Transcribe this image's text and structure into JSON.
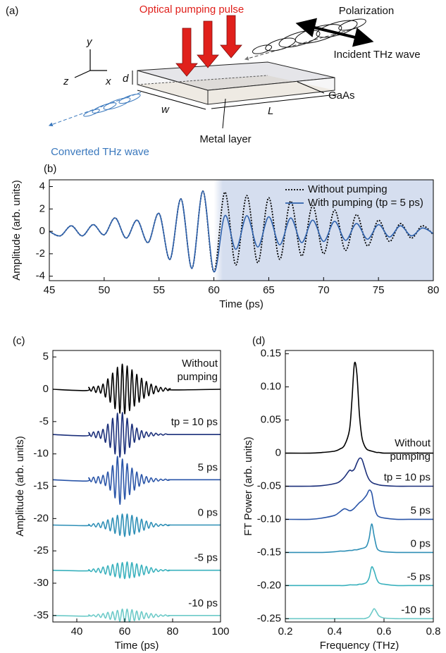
{
  "diagram": {
    "panel_label": "(a)",
    "pump_label": "Optical pumping pulse",
    "polarization_label": "Polarization",
    "incident_label": "Incident THz wave",
    "gaas_label": "GaAs",
    "metal_label": "Metal layer",
    "converted_label": "Converted THz wave",
    "axis_labels": [
      "y",
      "z",
      "x"
    ],
    "dimension_labels": [
      "d",
      "w",
      "L"
    ]
  },
  "chart_data": [
    {
      "type": "line",
      "panel_label": "(b)",
      "x_label": "Time (ps)",
      "y_label": "Amplitude (arb. units)",
      "x": [
        45,
        46,
        47,
        48,
        49,
        50,
        51,
        52,
        53,
        54,
        55,
        56,
        57,
        58,
        59,
        60,
        61,
        62,
        63,
        64,
        65,
        66,
        67,
        68,
        69,
        70,
        71,
        72,
        73,
        74,
        75,
        76,
        77,
        78,
        79,
        80
      ],
      "series": [
        {
          "name": "Without pumping",
          "color": "#000000",
          "line_style": "dotted",
          "values": [
            0,
            -0.4,
            0.5,
            -0.4,
            0.6,
            -0.3,
            1.2,
            -0.6,
            1.0,
            -1.0,
            1.6,
            -2.5,
            2.9,
            -3.3,
            3.6,
            -3.6,
            3.5,
            -3.0,
            3.2,
            -2.8,
            3.0,
            -2.5,
            2.7,
            -2.2,
            2.3,
            -2.0,
            1.9,
            -1.7,
            1.5,
            -1.3,
            1.0,
            -0.9,
            0.7,
            -0.6,
            0.5,
            -0.3
          ]
        },
        {
          "name": "With pumping (tp = 5 ps)",
          "color": "#2f62ad",
          "line_style": "solid",
          "values": [
            0,
            -0.4,
            0.5,
            -0.4,
            0.6,
            -0.3,
            1.2,
            -0.6,
            1.0,
            -1.0,
            1.6,
            -2.5,
            2.9,
            -3.3,
            3.6,
            -3.6,
            1.4,
            -1.6,
            1.4,
            -1.4,
            1.3,
            -1.2,
            1.2,
            -1.0,
            1.0,
            -0.9,
            0.9,
            -0.8,
            0.7,
            -0.7,
            0.6,
            -0.5,
            0.5,
            -0.4,
            0.3,
            -0.2
          ]
        }
      ],
      "xlim": [
        45,
        80
      ],
      "ylim": [
        -4.4,
        4.6
      ],
      "xticks": [
        45,
        50,
        55,
        60,
        65,
        70,
        75,
        80
      ],
      "yticks": [
        -4,
        -2,
        0,
        2,
        4
      ],
      "shaded_xrange": [
        60,
        80
      ],
      "shade_color": "#d5deef",
      "legend": "upper right"
    },
    {
      "type": "line",
      "panel_label": "(c)",
      "x_label": "Time (ps)",
      "y_label": "Amplitude (arb. units)",
      "x": [
        30,
        44,
        45,
        46,
        47,
        48,
        49,
        50,
        51,
        52,
        53,
        54,
        55,
        56,
        57,
        58,
        59,
        60,
        61,
        62,
        63,
        64,
        65,
        66,
        67,
        68,
        69,
        70,
        71,
        72,
        73,
        74,
        75,
        76,
        77,
        78,
        79,
        80,
        100
      ],
      "series": [
        {
          "name": "Without pumping",
          "color": "#000000",
          "line_style": "solid",
          "values": [
            0,
            -0.2,
            0.3,
            -0.3,
            0.4,
            -0.5,
            0.5,
            -0.6,
            0.8,
            -1.2,
            1.6,
            -2.0,
            2.5,
            -3.0,
            3.4,
            -3.7,
            3.9,
            -3.8,
            3.6,
            -3.3,
            3.0,
            -2.6,
            2.3,
            -2.0,
            1.7,
            -1.4,
            1.2,
            -1.0,
            0.8,
            -0.7,
            0.5,
            -0.4,
            0.3,
            -0.3,
            0.2,
            -0.2,
            0.1,
            -0.1,
            0
          ]
        },
        {
          "name": "tp = 10 ps",
          "color": "#1b2f7a",
          "line_style": "solid",
          "values": [
            -7,
            -7.2,
            -6.7,
            -7.3,
            -6.6,
            -7.5,
            -6.5,
            -7.6,
            -6.2,
            -8.2,
            -5.4,
            -9.0,
            -4.5,
            -10.0,
            -3.7,
            -10.5,
            -3.6,
            -10.0,
            -4.5,
            -9.0,
            -5.4,
            -8.2,
            -6.0,
            -7.8,
            -6.4,
            -7.5,
            -6.6,
            -7.3,
            -6.7,
            -7.2,
            -6.8,
            -7.1,
            -6.9,
            -7.1,
            -6.9,
            -7,
            -7,
            -7,
            -7
          ]
        },
        {
          "name": "5 ps",
          "color": "#2a55a8",
          "line_style": "solid",
          "values": [
            -14,
            -14.2,
            -13.7,
            -14.3,
            -13.6,
            -14.5,
            -13.5,
            -14.6,
            -13.3,
            -14.9,
            -12.8,
            -15.6,
            -11.8,
            -16.8,
            -10.4,
            -17.8,
            -10.8,
            -17.0,
            -11.5,
            -16.3,
            -12.2,
            -15.6,
            -12.8,
            -15.0,
            -13.2,
            -14.6,
            -13.5,
            -14.4,
            -13.7,
            -14.3,
            -13.8,
            -14.2,
            -13.9,
            -14.1,
            -13.9,
            -14.1,
            -14,
            -14,
            -14
          ]
        },
        {
          "name": "0 ps",
          "color": "#2e8fb6",
          "line_style": "solid",
          "values": [
            -21,
            -21.1,
            -20.9,
            -21.2,
            -20.8,
            -21.3,
            -20.7,
            -21.4,
            -20.5,
            -21.6,
            -20.2,
            -21.9,
            -19.9,
            -22.3,
            -19.5,
            -22.6,
            -19.3,
            -22.8,
            -19.3,
            -22.6,
            -19.5,
            -22.4,
            -19.8,
            -22.1,
            -20.1,
            -21.8,
            -20.4,
            -21.5,
            -20.6,
            -21.3,
            -20.8,
            -21.2,
            -20.9,
            -21.1,
            -20.9,
            -21.1,
            -21,
            -21,
            -21
          ]
        },
        {
          "name": "-5 ps",
          "color": "#39b1bd",
          "line_style": "solid",
          "values": [
            -28,
            -28.1,
            -27.9,
            -28.2,
            -27.8,
            -28.3,
            -27.7,
            -28.4,
            -27.5,
            -28.6,
            -27.3,
            -28.8,
            -27.1,
            -29.0,
            -26.9,
            -29.2,
            -26.8,
            -29.3,
            -26.7,
            -29.2,
            -26.8,
            -29.1,
            -27.0,
            -28.9,
            -27.2,
            -28.7,
            -27.4,
            -28.5,
            -27.6,
            -28.3,
            -27.8,
            -28.2,
            -27.9,
            -28.1,
            -27.9,
            -28.1,
            -28,
            -28,
            -28
          ]
        },
        {
          "name": "-10 ps",
          "color": "#6ccac8",
          "line_style": "solid",
          "values": [
            -35,
            -35.1,
            -34.9,
            -35.1,
            -34.9,
            -35.2,
            -34.8,
            -35.3,
            -34.7,
            -35.4,
            -34.5,
            -35.6,
            -34.4,
            -35.7,
            -34.2,
            -35.9,
            -34.0,
            -36.0,
            -34.0,
            -36.0,
            -34.1,
            -35.8,
            -34.3,
            -35.7,
            -34.4,
            -35.5,
            -34.6,
            -35.4,
            -34.7,
            -35.3,
            -34.8,
            -35.2,
            -34.9,
            -35.1,
            -34.9,
            -35.1,
            -35,
            -35,
            -35
          ]
        }
      ],
      "xlim": [
        30,
        100
      ],
      "ylim": [
        -36,
        6
      ],
      "xticks": [
        40,
        60,
        80,
        100
      ],
      "yticks": [
        5,
        0,
        -5,
        -10,
        -15,
        -20,
        -25,
        -30,
        -35
      ],
      "series_labels": "inline"
    },
    {
      "type": "line",
      "panel_label": "(d)",
      "x_label": "Frequency (THz)",
      "y_label": "FT Power (arb. units)",
      "x": [
        0.2,
        0.3,
        0.35,
        0.4,
        0.42,
        0.44,
        0.46,
        0.47,
        0.48,
        0.49,
        0.5,
        0.51,
        0.52,
        0.53,
        0.54,
        0.55,
        0.56,
        0.57,
        0.58,
        0.6,
        0.65,
        0.7,
        0.8
      ],
      "series": [
        {
          "name": "Without pumping",
          "color": "#000000",
          "line_style": "solid",
          "values": [
            0,
            0,
            0.001,
            0.003,
            0.006,
            0.012,
            0.035,
            0.08,
            0.135,
            0.12,
            0.06,
            0.025,
            0.012,
            0.006,
            0.004,
            0.003,
            0.002,
            0.001,
            0.001,
            0,
            0,
            0,
            0
          ]
        },
        {
          "name": "tp = 10 ps",
          "color": "#1b2f7a",
          "line_style": "solid",
          "values": [
            -0.05,
            -0.05,
            -0.049,
            -0.046,
            -0.043,
            -0.036,
            -0.026,
            -0.027,
            -0.024,
            -0.015,
            -0.008,
            -0.009,
            -0.02,
            -0.032,
            -0.04,
            -0.044,
            -0.046,
            -0.047,
            -0.048,
            -0.049,
            -0.05,
            -0.05,
            -0.05
          ]
        },
        {
          "name": "5 ps",
          "color": "#2a55a8",
          "line_style": "solid",
          "values": [
            -0.1,
            -0.1,
            -0.098,
            -0.094,
            -0.089,
            -0.084,
            -0.087,
            -0.086,
            -0.083,
            -0.079,
            -0.075,
            -0.072,
            -0.068,
            -0.063,
            -0.056,
            -0.06,
            -0.08,
            -0.092,
            -0.096,
            -0.098,
            -0.1,
            -0.1,
            -0.1
          ]
        },
        {
          "name": "0 ps",
          "color": "#2e8fb6",
          "line_style": "solid",
          "values": [
            -0.15,
            -0.15,
            -0.15,
            -0.149,
            -0.148,
            -0.148,
            -0.147,
            -0.147,
            -0.146,
            -0.146,
            -0.145,
            -0.144,
            -0.143,
            -0.14,
            -0.128,
            -0.107,
            -0.125,
            -0.142,
            -0.147,
            -0.149,
            -0.15,
            -0.15,
            -0.15
          ]
        },
        {
          "name": "-5 ps",
          "color": "#39b1bd",
          "line_style": "solid",
          "values": [
            -0.2,
            -0.2,
            -0.2,
            -0.2,
            -0.2,
            -0.2,
            -0.199,
            -0.199,
            -0.199,
            -0.199,
            -0.198,
            -0.198,
            -0.197,
            -0.195,
            -0.188,
            -0.172,
            -0.178,
            -0.19,
            -0.196,
            -0.198,
            -0.2,
            -0.2,
            -0.2
          ]
        },
        {
          "name": "-10 ps",
          "color": "#6ccac8",
          "line_style": "solid",
          "values": [
            -0.25,
            -0.25,
            -0.25,
            -0.25,
            -0.25,
            -0.25,
            -0.25,
            -0.25,
            -0.25,
            -0.25,
            -0.25,
            -0.25,
            -0.25,
            -0.249,
            -0.247,
            -0.241,
            -0.235,
            -0.24,
            -0.246,
            -0.249,
            -0.25,
            -0.25,
            -0.25
          ]
        }
      ],
      "xlim": [
        0.2,
        0.8
      ],
      "ylim": [
        -0.255,
        0.155
      ],
      "xticks": [
        0.2,
        0.4,
        0.6,
        0.8
      ],
      "yticks": [
        0.15,
        {
          "value": 0.1,
          "label": "0.10"
        },
        0.05,
        0,
        -0.05,
        {
          "value": -0.1,
          "label": "-0.10"
        },
        -0.15,
        {
          "value": -0.2,
          "label": "-0.20"
        },
        -0.25
      ],
      "series_labels": "inline"
    }
  ]
}
